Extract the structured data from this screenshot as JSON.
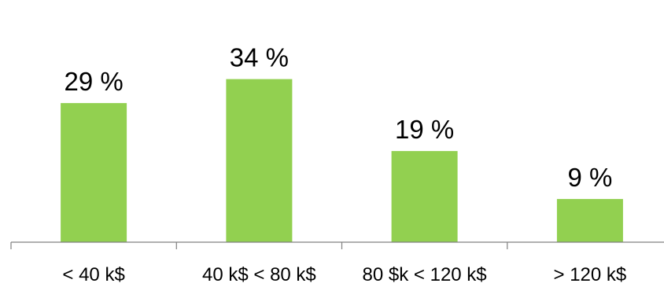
{
  "chart_data": {
    "type": "bar",
    "categories": [
      "< 40 k$",
      "40 k$ < 80 k$",
      "80 $k < 120 k$",
      "> 120 k$"
    ],
    "values": [
      29,
      34,
      19,
      9
    ],
    "data_labels": [
      "29 %",
      "34 %",
      "19 %",
      "9 %"
    ],
    "title": "",
    "xlabel": "",
    "ylabel": "",
    "ylim": [
      0,
      40
    ],
    "grid": false,
    "legend": "none",
    "y_axis_visible": false,
    "bar_color": "#92d050",
    "axis_color": "#808080"
  }
}
